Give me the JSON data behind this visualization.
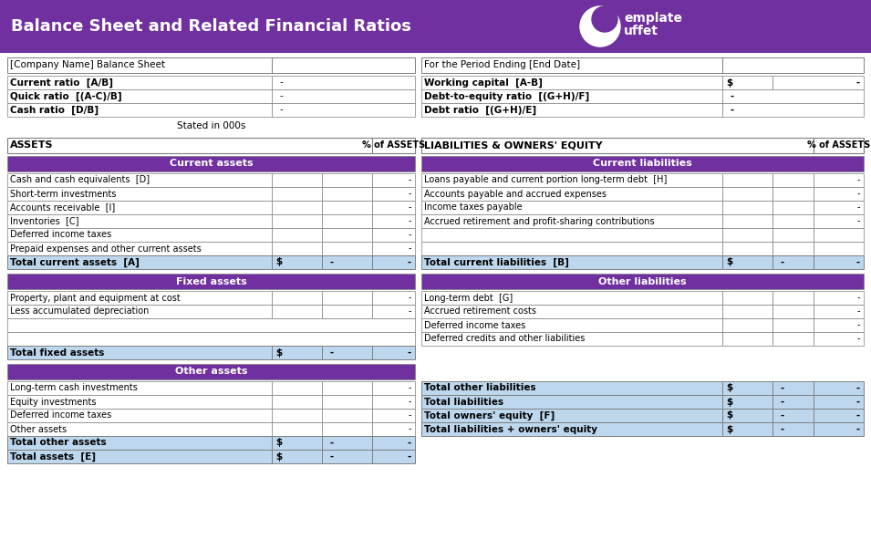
{
  "title": "Balance Sheet and Related Financial Ratios",
  "header_bg": "#7030A0",
  "section_bg": "#7030A0",
  "total_row_bg": "#BDD7EE",
  "border_color": "#7F7F7F",
  "bg_color": "#FFFFFF",
  "left_col": {
    "company_label": "[Company Name] Balance Sheet",
    "ratios": [
      [
        "Current ratio  [A/B]",
        "-"
      ],
      [
        "Quick ratio  [(A-C)/B]",
        "-"
      ],
      [
        "Cash ratio  [D/B]",
        "-"
      ]
    ],
    "stated": "Stated in 000s",
    "assets_header": "ASSETS",
    "assets_pct": "% of ASSETS",
    "current_assets_section": "Current assets",
    "current_assets_rows": [
      [
        "Cash and cash equivalents  [D]",
        "-"
      ],
      [
        "Short-term investments",
        "-"
      ],
      [
        "Accounts receivable  [I]",
        "-"
      ],
      [
        "Inventories  [C]",
        "-"
      ],
      [
        "Deferred income taxes",
        "-"
      ],
      [
        "Prepaid expenses and other current assets",
        "-"
      ]
    ],
    "total_current_assets": [
      "Total current assets  [A]",
      "$",
      "-",
      "-"
    ],
    "fixed_assets_section": "Fixed assets",
    "fixed_assets_rows": [
      [
        "Property, plant and equipment at cost",
        "-"
      ],
      [
        "Less accumulated depreciation",
        "-"
      ]
    ],
    "total_fixed_assets": [
      "Total fixed assets",
      "$",
      "-",
      "-"
    ],
    "other_assets_section": "Other assets",
    "other_assets_rows": [
      [
        "Long-term cash investments",
        "-"
      ],
      [
        "Equity investments",
        "-"
      ],
      [
        "Deferred income taxes",
        "-"
      ],
      [
        "Other assets",
        "-"
      ]
    ],
    "total_other_assets": [
      "Total other assets",
      "$",
      "-",
      "-"
    ],
    "total_assets": [
      "Total assets  [E]",
      "$",
      "-",
      "-"
    ]
  },
  "right_col": {
    "period_label": "For the Period Ending [End Date]",
    "ratios": [
      [
        "Working capital  [A-B]",
        "$",
        "-"
      ],
      [
        "Debt-to-equity ratio  [(G+H)/F]",
        "-"
      ],
      [
        "Debt ratio  [(G+H)/E]",
        "-"
      ]
    ],
    "liabilities_header": "LIABILITIES & OWNERS' EQUITY",
    "liabilities_pct": "% of ASSETS",
    "current_liabilities_section": "Current liabilities",
    "current_liabilities_rows": [
      [
        "Loans payable and current portion long-term debt  [H]",
        "-"
      ],
      [
        "Accounts payable and accrued expenses",
        "-"
      ],
      [
        "Income taxes payable",
        "-"
      ],
      [
        "Accrued retirement and profit-sharing contributions",
        "-"
      ],
      [
        "",
        ""
      ],
      [
        "",
        ""
      ]
    ],
    "total_current_liabilities": [
      "Total current liabilities  [B]",
      "$",
      "-",
      "-"
    ],
    "other_liabilities_section": "Other liabilities",
    "other_liabilities_rows": [
      [
        "Long-term debt  [G]",
        "-"
      ],
      [
        "Accrued retirement costs",
        "-"
      ],
      [
        "Deferred income taxes",
        "-"
      ],
      [
        "Deferred credits and other liabilities",
        "-"
      ]
    ],
    "summary_rows": [
      [
        "Total other liabilities",
        "$",
        "-",
        "-"
      ],
      [
        "Total liabilities",
        "$",
        "-",
        "-"
      ],
      [
        "Total owners' equity  [F]",
        "$",
        "-",
        "-"
      ],
      [
        "Total liabilities + owners' equity",
        "$",
        "-",
        "-"
      ]
    ]
  }
}
